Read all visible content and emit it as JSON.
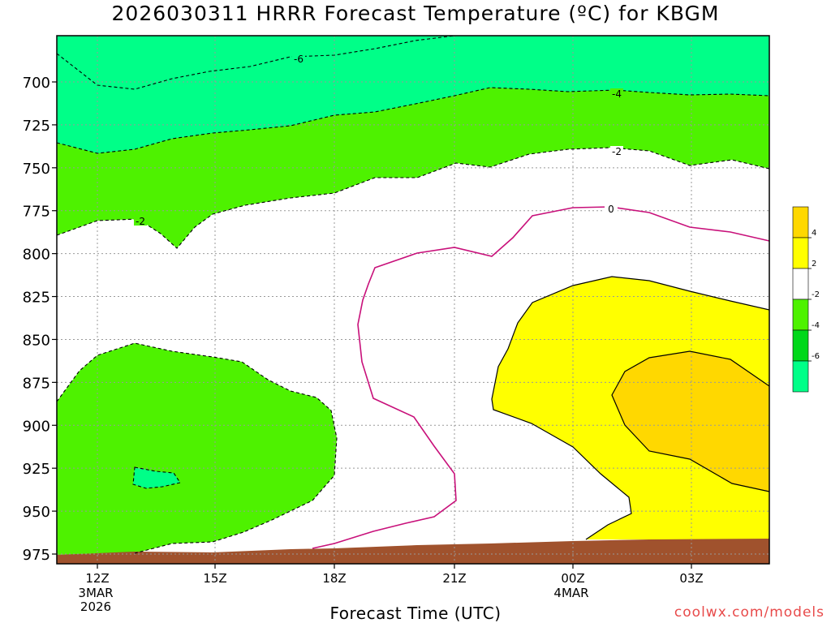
{
  "chart_data": {
    "type": "contour",
    "title": "2026030311 HRRR Forecast Temperature (ºC) for KBGM",
    "xlabel": "Forecast Time (UTC)",
    "ylabel": "",
    "y_axis": {
      "quantity": "pressure (mb)",
      "inverted": true,
      "ticks": [
        700,
        725,
        750,
        775,
        800,
        825,
        850,
        875,
        900,
        925,
        950,
        975
      ]
    },
    "x_axis": {
      "ticks": [
        {
          "label": "12Z",
          "sub": [
            "3MAR",
            "2026"
          ]
        },
        {
          "label": "15Z",
          "sub": []
        },
        {
          "label": "18Z",
          "sub": []
        },
        {
          "label": "21Z",
          "sub": []
        },
        {
          "label": "00Z",
          "sub": [
            "4MAR"
          ]
        },
        {
          "label": "03Z",
          "sub": []
        }
      ]
    },
    "grid": true,
    "contour_labels": [
      "-6",
      "-4",
      "-2",
      "0",
      "-2"
    ],
    "colorbar": {
      "labels": [
        "4",
        "2",
        "-2",
        "-4",
        "-6"
      ],
      "colors": [
        "#ffd800",
        "#ffff00",
        "#ffffff",
        "#4ef200",
        "#00d81a",
        "#00ff88"
      ]
    },
    "fill_colors": {
      "very_cold": "#00ff88",
      "cold": "#4ef200",
      "neutral": "#ffffff",
      "warm": "#ffff00",
      "warmer": "#ffd800",
      "ground": "#a0522d",
      "zero_line": "#c8107a"
    }
  },
  "credit": "coolwx.com/models"
}
